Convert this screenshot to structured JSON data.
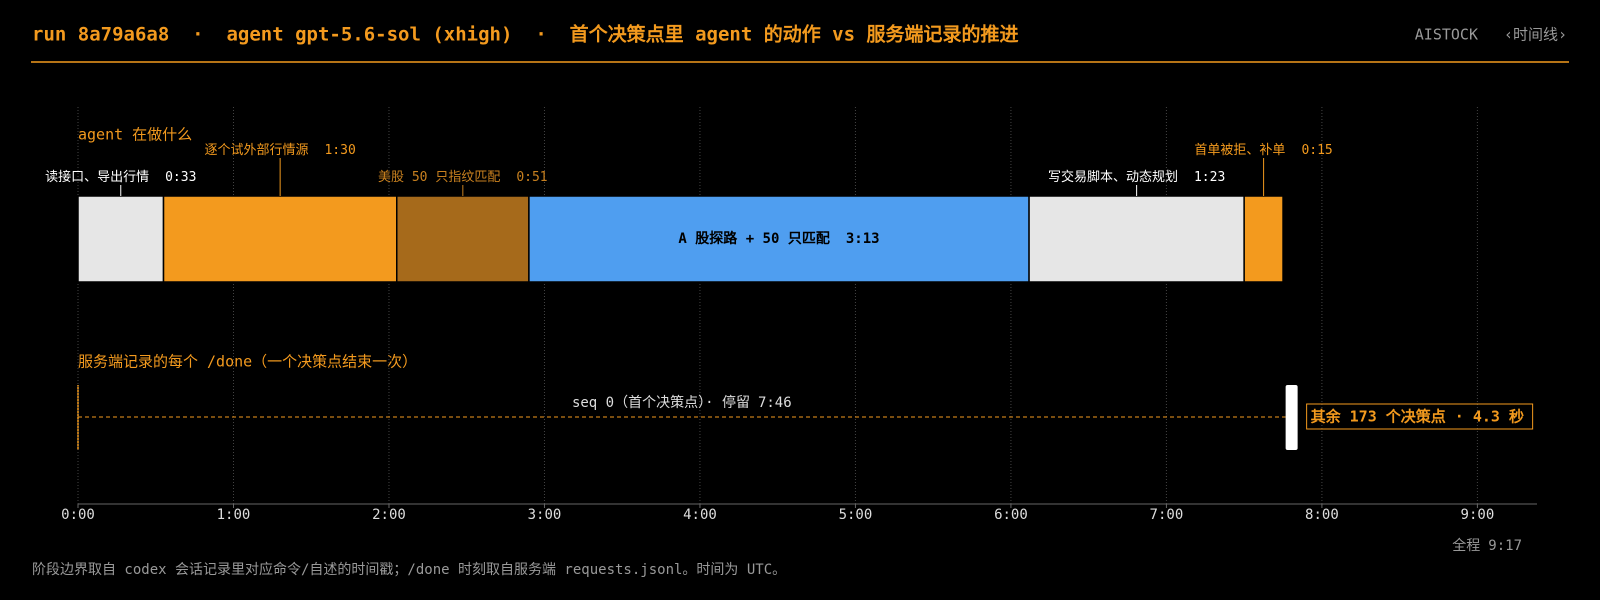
{
  "header": {
    "title": "run 8a79a6a8  ·  agent gpt-5.6-sol (xhigh)  ·  首个决策点里 agent 的动作 vs 服务端记录的推进",
    "brand": "AISTOCK",
    "nav": "‹时间线›"
  },
  "chart_data": {
    "type": "timeline",
    "lane_title": "agent 在做什么",
    "segments": [
      {
        "name": "读接口、导出行情",
        "duration": 33,
        "duration_label": "0:33",
        "color": "#e6e6e6",
        "label_color": "#ffffff"
      },
      {
        "name": "逐个试外部行情源",
        "duration": 90,
        "duration_label": "1:30",
        "color": "#f39a1e",
        "label_color": "#f39a1e"
      },
      {
        "name": "美股 50 只指纹匹配",
        "duration": 51,
        "duration_label": "0:51",
        "color": "#a66a1b",
        "label_color": "#c8801f"
      },
      {
        "name": "A 股探路 + 50 只匹配",
        "duration": 193,
        "duration_label": "3:13",
        "color": "#4f9ef0",
        "label_color": "#000000"
      },
      {
        "name": "写交易脚本、动态规划",
        "duration": 83,
        "duration_label": "1:23",
        "color": "#e6e6e6",
        "label_color": "#ffffff"
      },
      {
        "name": "首单被拒、补单",
        "duration": 15,
        "duration_label": "0:15",
        "color": "#f39a1e",
        "label_color": "#f39a1e"
      }
    ],
    "done": {
      "title": "服务端记录的每个 /done（一个决策点结束一次）",
      "first": {
        "label": "seq 0（首个决策点）· 停留",
        "dwell": 466,
        "dwell_label": "7:46"
      },
      "rest": {
        "label": "其余 173 个决策点 · 4.3 秒",
        "start": 466,
        "duration": 4.3
      }
    },
    "xlim": [
      0,
      563
    ],
    "xticks": [
      {
        "value": 0,
        "label": "0:00"
      },
      {
        "value": 60,
        "label": "1:00"
      },
      {
        "value": 120,
        "label": "2:00"
      },
      {
        "value": 180,
        "label": "3:00"
      },
      {
        "value": 240,
        "label": "4:00"
      },
      {
        "value": 300,
        "label": "5:00"
      },
      {
        "value": 360,
        "label": "6:00"
      },
      {
        "value": 420,
        "label": "7:00"
      },
      {
        "value": 480,
        "label": "8:00"
      },
      {
        "value": 540,
        "label": "9:00"
      }
    ],
    "grid": true,
    "total": {
      "label": "全程",
      "value": 557,
      "value_label": "9:17"
    }
  },
  "footnote": "阶段边界取自 codex 会话记录里对应命令/自述的时间戳；/done 时刻取自服务端 requests.jsonl。时间为 UTC。"
}
